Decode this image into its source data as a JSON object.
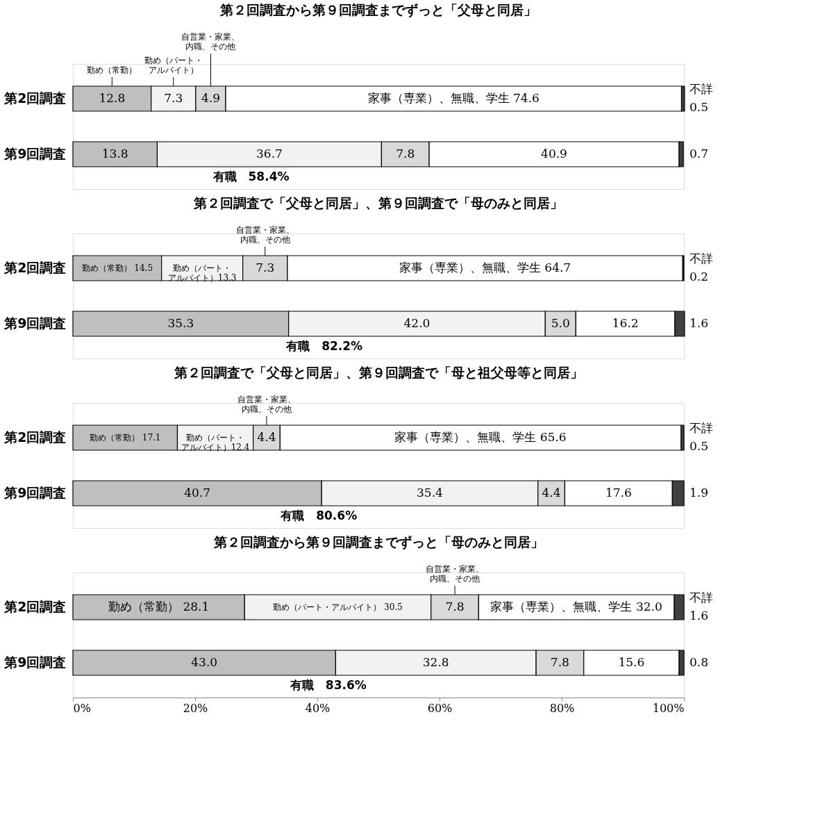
{
  "chart_data": [
    {
      "type": "bar",
      "orientation": "horizontal",
      "stacked": true,
      "title": "第２回調査から第９回調査までずっと「父母と同居」",
      "categories": [
        "第2回調査",
        "第9回調査"
      ],
      "xlim": [
        0,
        100
      ],
      "tick_labels": "y",
      "annotations": [
        "有職　58.4%"
      ],
      "series": [
        {
          "name": "勤め（常勤）",
          "color": "#bfbfbf",
          "values": [
            12.8,
            13.8
          ],
          "value_labels": [
            "12.8",
            "13.8"
          ]
        },
        {
          "name": "勤め（パート・アルバイト）",
          "color": "#f2f2f2",
          "values": [
            7.3,
            36.7
          ],
          "value_labels": [
            "7.3",
            "36.7"
          ]
        },
        {
          "name": "自営業・家業、内職、その他",
          "color": "#d9d9d9",
          "values": [
            4.9,
            7.8
          ],
          "value_labels": [
            "4.9",
            "7.8"
          ]
        },
        {
          "color": "#ffffff",
          "values": [
            74.6,
            40.9
          ],
          "value_labels": [
            "家事（専業）、無職、学生 74.6",
            "40.9"
          ]
        },
        {
          "name": "不詳",
          "color": "#404040",
          "values": [
            0.5,
            0.7
          ],
          "value_labels": [
            "0.5",
            "0.7"
          ]
        }
      ]
    },
    {
      "type": "bar",
      "orientation": "horizontal",
      "stacked": true,
      "title": "第２回調査で「父母と同居」、第９回調査で「母のみと同居」",
      "categories": [
        "第2回調査",
        "第9回調査"
      ],
      "xlim": [
        0,
        100
      ],
      "tick_labels": "y",
      "annotations": [
        "有職　82.2%"
      ],
      "series": [
        {
          "color": "#bfbfbf",
          "values": [
            14.5,
            35.3
          ],
          "value_labels": [
            "勤め（常勤） 14.5",
            "35.3"
          ]
        },
        {
          "color": "#f2f2f2",
          "values": [
            13.3,
            42.0
          ],
          "value_labels": [
            "勤め（パート・アルバイト）13.3",
            "42.0"
          ]
        },
        {
          "name": "自営業・家業、内職、その他",
          "color": "#d9d9d9",
          "values": [
            7.3,
            5.0
          ],
          "value_labels": [
            "7.3",
            "5.0"
          ]
        },
        {
          "color": "#ffffff",
          "values": [
            64.7,
            16.2
          ],
          "value_labels": [
            "家事（専業）、無職、学生 64.7",
            "16.2"
          ]
        },
        {
          "name": "不詳",
          "color": "#404040",
          "values": [
            0.2,
            1.6
          ],
          "value_labels": [
            "0.2",
            "1.6"
          ]
        }
      ]
    },
    {
      "type": "bar",
      "orientation": "horizontal",
      "stacked": true,
      "title": "第２回調査で「父母と同居」、第９回調査で「母と祖父母等と同居」",
      "categories": [
        "第2回調査",
        "第9回調査"
      ],
      "xlim": [
        0,
        100
      ],
      "tick_labels": "y",
      "annotations": [
        "有職　80.6%"
      ],
      "series": [
        {
          "color": "#bfbfbf",
          "values": [
            17.1,
            40.7
          ],
          "value_labels": [
            "勤め（常勤） 17.1",
            "40.7"
          ]
        },
        {
          "color": "#f2f2f2",
          "values": [
            12.4,
            35.4
          ],
          "value_labels": [
            "勤め（パート・アルバイト）12.4",
            "35.4"
          ]
        },
        {
          "name": "自営業・家業、内職、その他",
          "color": "#d9d9d9",
          "values": [
            4.4,
            4.4
          ],
          "value_labels": [
            "4.4",
            "4.4"
          ]
        },
        {
          "color": "#ffffff",
          "values": [
            65.6,
            17.6
          ],
          "value_labels": [
            "家事（専業）、無職、学生 65.6",
            "17.6"
          ]
        },
        {
          "name": "不詳",
          "color": "#404040",
          "values": [
            0.5,
            1.9
          ],
          "value_labels": [
            "0.5",
            "1.9"
          ]
        }
      ]
    },
    {
      "type": "bar",
      "orientation": "horizontal",
      "stacked": true,
      "title": "第２回調査から第９回調査までずっと「母のみと同居」",
      "categories": [
        "第2回調査",
        "第9回調査"
      ],
      "xlim": [
        0,
        100
      ],
      "xticks": [
        {
          "value": 0,
          "label": "0%"
        },
        {
          "value": 20,
          "label": "20%"
        },
        {
          "value": 40,
          "label": "40%"
        },
        {
          "value": 60,
          "label": "60%"
        },
        {
          "value": 80,
          "label": "80%"
        },
        {
          "value": 100,
          "label": "100%"
        }
      ],
      "annotations": [
        "有職　83.6%"
      ],
      "series": [
        {
          "color": "#bfbfbf",
          "values": [
            28.1,
            43.0
          ],
          "value_labels": [
            "勤め（常勤） 28.1",
            "43.0"
          ]
        },
        {
          "color": "#f2f2f2",
          "values": [
            30.5,
            32.8
          ],
          "value_labels": [
            "勤め（パート・アルバイト） 30.5",
            "32.8"
          ]
        },
        {
          "name": "自営業・家業、内職、その他",
          "color": "#d9d9d9",
          "values": [
            7.8,
            7.8
          ],
          "value_labels": [
            "7.8",
            "7.8"
          ]
        },
        {
          "color": "#ffffff",
          "values": [
            32.0,
            15.6
          ],
          "value_labels": [
            "家事（専業）、無職、学生 32.0",
            "15.6"
          ]
        },
        {
          "name": "不詳",
          "color": "#404040",
          "values": [
            1.6,
            0.8
          ],
          "value_labels": [
            "1.6",
            "0.8"
          ]
        }
      ]
    }
  ]
}
